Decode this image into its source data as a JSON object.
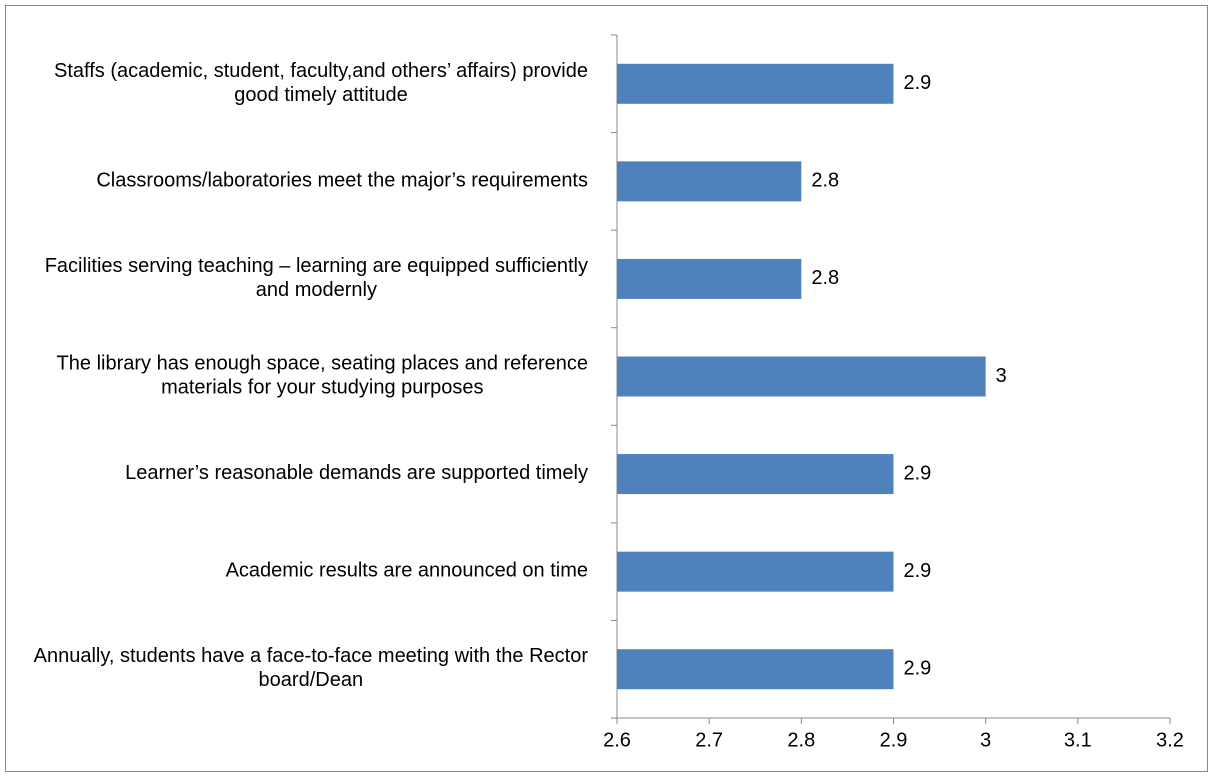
{
  "chart_data": {
    "type": "bar",
    "orientation": "horizontal",
    "categories": [
      "Staffs (academic, student, faculty,and others’ affairs) provide good timely attitude",
      "Classrooms/laboratories meet the major’s requirements",
      "Facilities serving teaching – learning are equipped sufficiently and modernly",
      "The library has enough space, seating places and reference materials for your studying purposes",
      "Learner’s reasonable demands are supported timely",
      "Academic results are announced on time",
      "Annually, students have a face-to-face meeting with the Rector board/Dean"
    ],
    "values": [
      2.9,
      2.8,
      2.8,
      3,
      2.9,
      2.9,
      2.9
    ],
    "color": "#4f81bd",
    "xlim": [
      2.6,
      3.2
    ],
    "xticks": [
      2.6,
      2.7,
      2.8,
      2.9,
      3,
      3.1,
      3.2
    ],
    "grid": false
  }
}
